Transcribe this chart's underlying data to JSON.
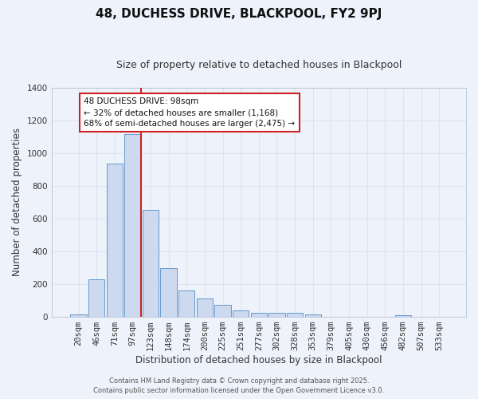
{
  "title": "48, DUCHESS DRIVE, BLACKPOOL, FY2 9PJ",
  "subtitle": "Size of property relative to detached houses in Blackpool",
  "xlabel": "Distribution of detached houses by size in Blackpool",
  "ylabel": "Number of detached properties",
  "bar_labels": [
    "20sqm",
    "46sqm",
    "71sqm",
    "97sqm",
    "123sqm",
    "148sqm",
    "174sqm",
    "200sqm",
    "225sqm",
    "251sqm",
    "277sqm",
    "302sqm",
    "328sqm",
    "353sqm",
    "379sqm",
    "405sqm",
    "430sqm",
    "456sqm",
    "482sqm",
    "507sqm",
    "533sqm"
  ],
  "bar_values": [
    15,
    230,
    935,
    1115,
    655,
    295,
    158,
    110,
    70,
    38,
    22,
    22,
    20,
    15,
    0,
    0,
    0,
    0,
    10,
    0,
    0
  ],
  "bar_color": "#ccd9ee",
  "bar_edge_color": "#6699cc",
  "background_color": "#eef2fa",
  "grid_color": "#dde4f0",
  "ylim": [
    0,
    1400
  ],
  "yticks": [
    0,
    200,
    400,
    600,
    800,
    1000,
    1200,
    1400
  ],
  "vline_color": "#cc2222",
  "annotation_title": "48 DUCHESS DRIVE: 98sqm",
  "annotation_line1": "← 32% of detached houses are smaller (1,168)",
  "annotation_line2": "68% of semi-detached houses are larger (2,475) →",
  "annotation_box_color": "#ffffff",
  "annotation_box_edge": "#cc2222",
  "footer1": "Contains HM Land Registry data © Crown copyright and database right 2025.",
  "footer2": "Contains public sector information licensed under the Open Government Licence v3.0.",
  "title_fontsize": 11,
  "subtitle_fontsize": 9,
  "axis_label_fontsize": 8.5,
  "tick_fontsize": 7.5,
  "annotation_fontsize": 7.5,
  "footer_fontsize": 6
}
